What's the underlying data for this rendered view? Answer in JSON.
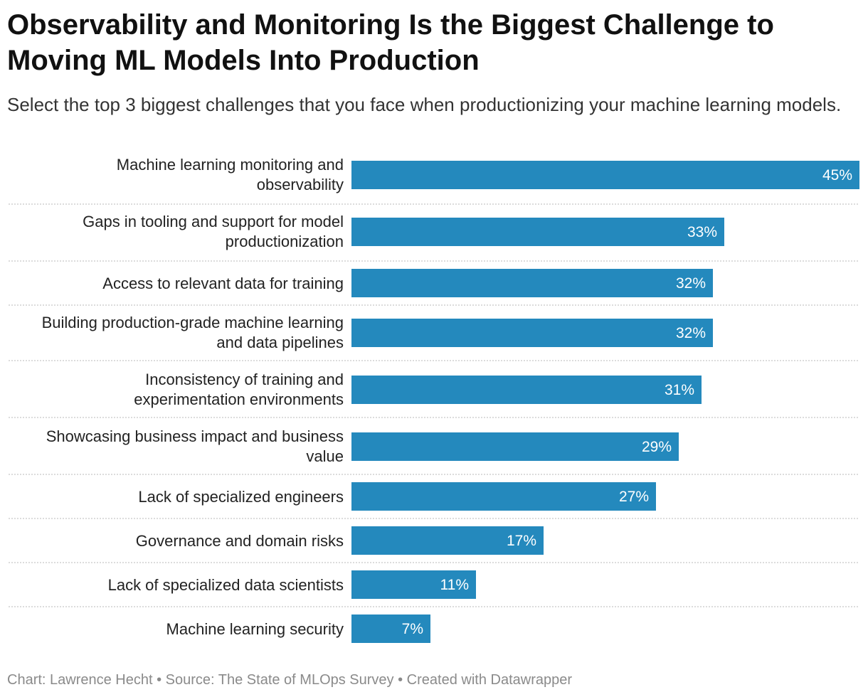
{
  "title": "Observability and Monitoring Is the Biggest Challenge to Moving ML Models Into Production",
  "subtitle": "Select the top 3 biggest challenges that you face when productionizing your machine learning models.",
  "footer": "Chart: Lawrence Hecht • Source: The State of MLOps Survey • Created with Datawrapper",
  "chart_data": {
    "type": "bar",
    "orientation": "horizontal",
    "categories": [
      "Machine learning monitoring and observability",
      "Gaps in tooling and support for model productionization",
      "Access to relevant data for training",
      "Building production-grade machine learning and data pipelines",
      "Inconsistency of training and experimentation environments",
      "Showcasing business impact and business value",
      "Lack of specialized engineers",
      "Governance and domain risks",
      "Lack of specialized data scientists",
      "Machine learning security"
    ],
    "values": [
      45,
      33,
      32,
      32,
      31,
      29,
      27,
      17,
      11,
      7
    ],
    "value_labels": [
      "45%",
      "33%",
      "32%",
      "32%",
      "31%",
      "29%",
      "27%",
      "17%",
      "11%",
      "7%"
    ],
    "bar_color": "#2489bd",
    "xlim": [
      0,
      45
    ]
  }
}
